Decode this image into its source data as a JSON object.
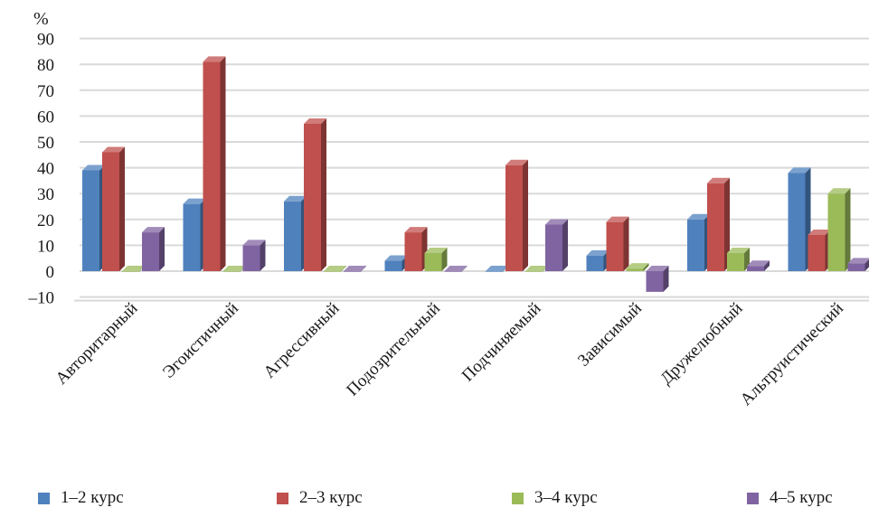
{
  "chart_data": {
    "type": "bar",
    "ylabel": "%",
    "ylim": [
      -10,
      90
    ],
    "yticks": [
      "90",
      "80",
      "70",
      "60",
      "50",
      "40",
      "30",
      "20",
      "10",
      "0",
      "–10"
    ],
    "grid": true,
    "legend_position": "bottom",
    "categories": [
      "Авторитарный",
      "Эгоистичный",
      "Агрессивный",
      "Подозрительный",
      "Подчиняемый",
      "Зависимый",
      "Дружелюбный",
      "Альтруистический"
    ],
    "series": [
      {
        "name": "1–2 курс",
        "color": "#4f81bd",
        "values": [
          39,
          26,
          27,
          4,
          0,
          6,
          20,
          38
        ]
      },
      {
        "name": "2–3 курс",
        "color": "#c0504d",
        "values": [
          46,
          81,
          57,
          15,
          41,
          19,
          34,
          14
        ]
      },
      {
        "name": "3–4 курс",
        "color": "#9bbb59",
        "values": [
          0,
          0,
          0,
          7,
          0,
          1,
          7,
          30
        ]
      },
      {
        "name": "4–5 курс",
        "color": "#8064a2",
        "values": [
          15,
          10,
          0,
          0,
          18,
          -8,
          2,
          3
        ]
      }
    ]
  }
}
